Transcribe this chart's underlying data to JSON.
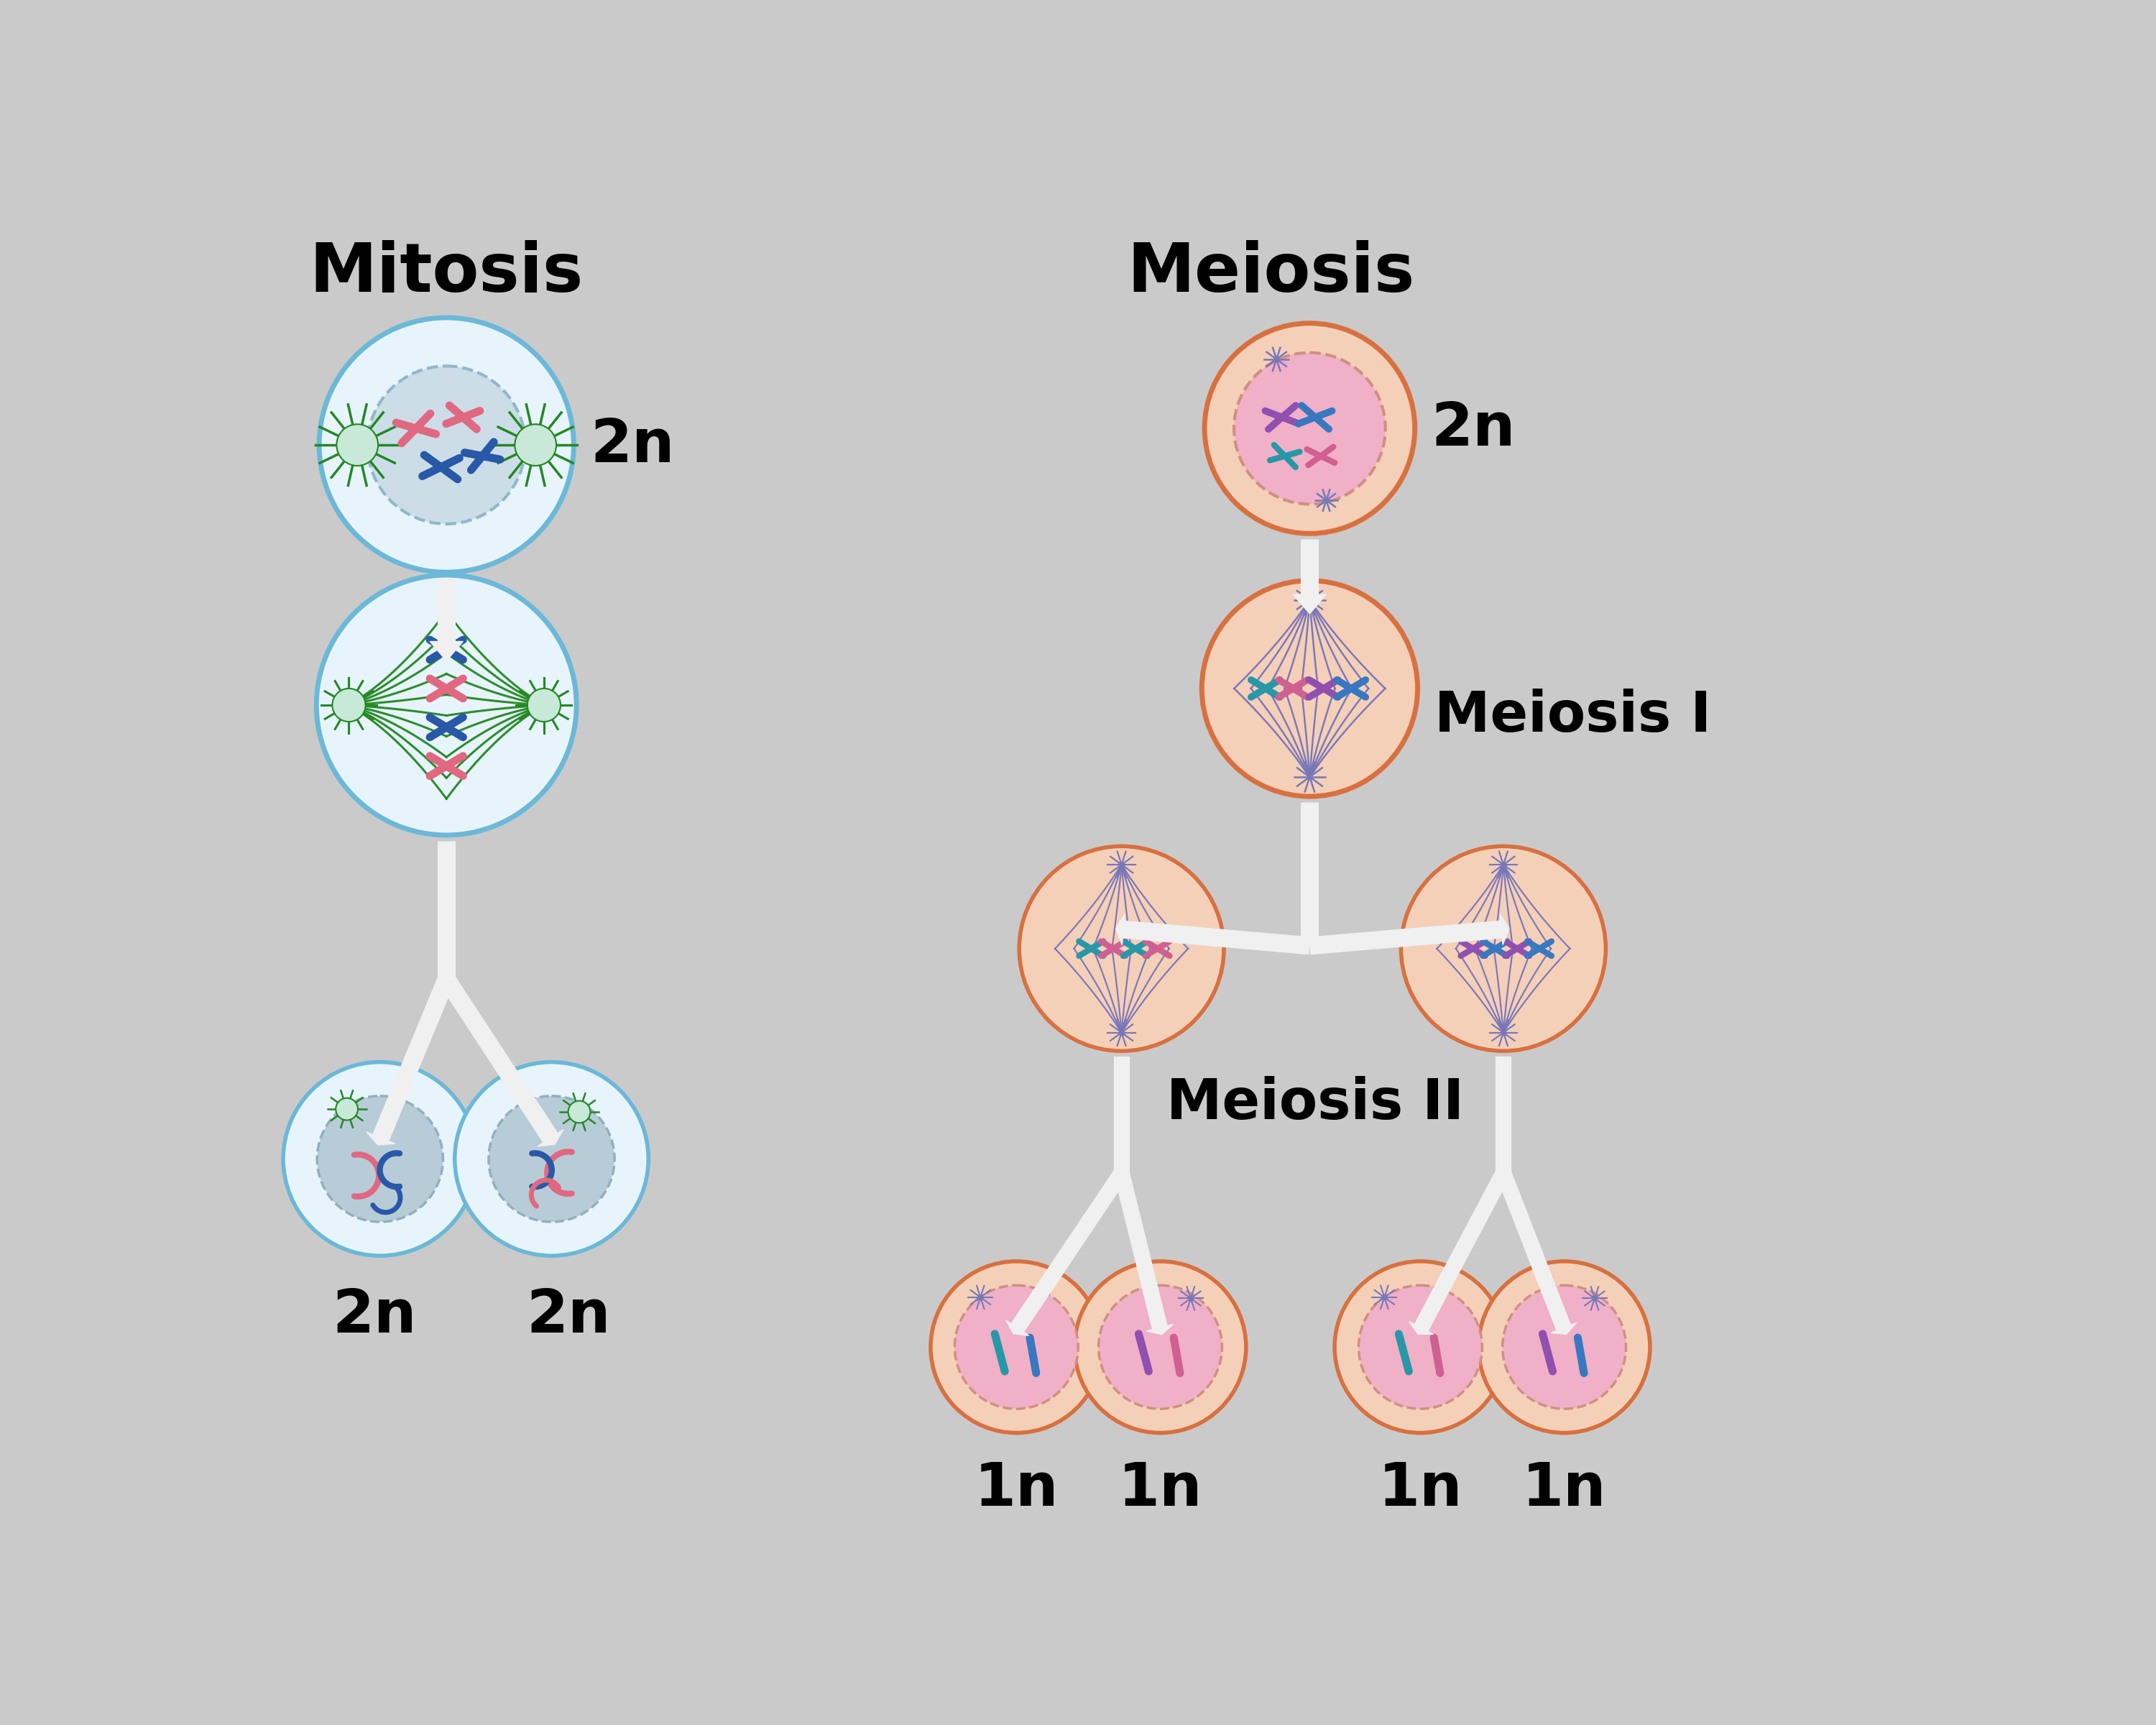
{
  "bg_color": "#cacaca",
  "mitosis_title": "Mitosis",
  "meiosis_title": "Meiosis",
  "meiosis_I_label": "Meiosis I",
  "meiosis_II_label": "Meiosis II",
  "label_2n": "2n",
  "label_1n": "1n",
  "title_fontsize": 68,
  "label_fontsize": 60,
  "stage_label_fontsize": 56,
  "mitosis_color_outer": "#6bb8d8",
  "mitosis_color_inner": "#e8f4fb",
  "mitosis_color_nucleus": "#ccdde8",
  "meiosis_color_outer": "#d87040",
  "meiosis_color_inner": "#f5d0b8",
  "meiosis_color_nucleus": "#f0b0c8",
  "meiosis_color_nucleus2": "#f8d0e0",
  "chr_pink": "#e06880",
  "chr_blue": "#2858a8",
  "chr_teal": "#2898a8",
  "chr_purple": "#9050b0",
  "spindle_green": "#228822",
  "spindle_purple": "#7070b8",
  "aster_green": "#228822",
  "aster_purple": "#7878b8",
  "arrow_white": "#f0f0f0"
}
